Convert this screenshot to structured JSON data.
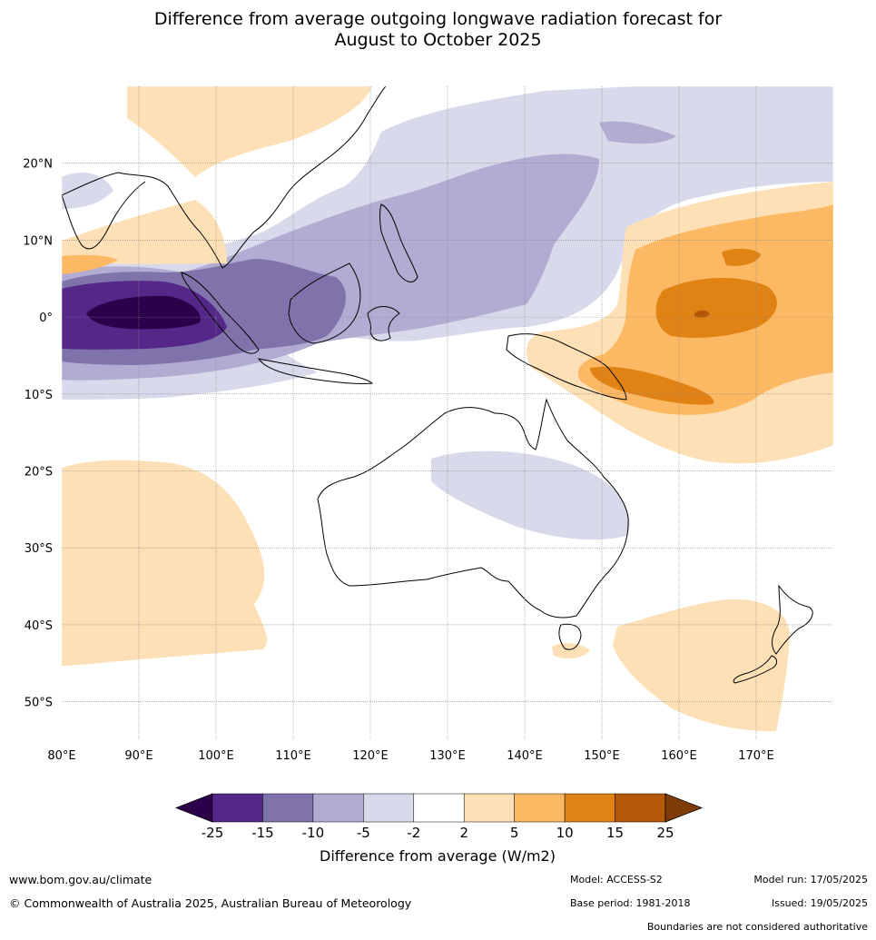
{
  "title": {
    "line1": "Difference from average outgoing longwave radiation forecast for",
    "line2": "August to October 2025"
  },
  "map": {
    "lon_range": [
      80,
      180
    ],
    "lat_range": [
      -55,
      30
    ],
    "lon_ticks": [
      "80°E",
      "90°E",
      "100°E",
      "110°E",
      "120°E",
      "130°E",
      "140°E",
      "150°E",
      "160°E",
      "170°E"
    ],
    "lat_ticks": [
      "20°N",
      "10°N",
      "0°",
      "10°S",
      "20°S",
      "30°S",
      "40°S",
      "50°S"
    ],
    "grid": true
  },
  "legend": {
    "title": "Difference from average (W/m2)",
    "ticks": [
      "-25",
      "-15",
      "-10",
      "-5",
      "-2",
      "2",
      "5",
      "10",
      "15",
      "25"
    ],
    "colors": [
      "#2d004b",
      "#542788",
      "#8073ac",
      "#b2abd2",
      "#d8daeb",
      "#ffffff",
      "#fee0b6",
      "#fdb863",
      "#e08214",
      "#b35806",
      "#7f3b08"
    ]
  },
  "footer": {
    "website": "www.bom.gov.au/climate",
    "copyright": "© Commonwealth of Australia 2025, Australian Bureau of Meteorology",
    "model": "Model: ACCESS-S2",
    "base_period": "Base period: 1981-2018",
    "model_run": "Model run: 17/05/2025",
    "issued": "Issued: 19/05/2025",
    "disclaimer": "Boundaries are not considered authoritative"
  }
}
